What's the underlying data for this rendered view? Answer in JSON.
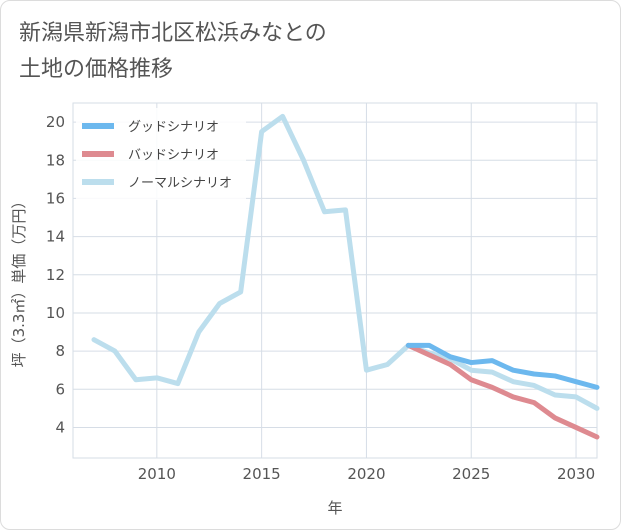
{
  "title": "新潟県新潟市北区松浜みなとの\n土地の価格推移",
  "chart_data": {
    "type": "line",
    "title": "新潟県新潟市北区松浜みなとの土地の価格推移",
    "xlabel": "年",
    "ylabel": "坪（3.3㎡）単価（万円）",
    "xlim": [
      2006,
      2031
    ],
    "ylim": [
      2.4,
      21
    ],
    "xticks": [
      2010,
      2015,
      2020,
      2025,
      2030
    ],
    "yticks": [
      4,
      6,
      8,
      10,
      12,
      14,
      16,
      18,
      20
    ],
    "legend_position": "top-left",
    "series": [
      {
        "name": "グッドシナリオ",
        "color": "#6cb8ee",
        "x": [
          2022,
          2023,
          2024,
          2025,
          2026,
          2027,
          2028,
          2029,
          2030,
          2031
        ],
        "values": [
          8.3,
          8.3,
          7.7,
          7.4,
          7.5,
          7.0,
          6.8,
          6.7,
          6.4,
          6.1
        ]
      },
      {
        "name": "バッドシナリオ",
        "color": "#de8a90",
        "x": [
          2022,
          2023,
          2024,
          2025,
          2026,
          2027,
          2028,
          2029,
          2030,
          2031
        ],
        "values": [
          8.3,
          7.8,
          7.3,
          6.5,
          6.1,
          5.6,
          5.3,
          4.5,
          4.0,
          3.5
        ]
      },
      {
        "name": "ノーマルシナリオ",
        "color": "#bcdeed",
        "x": [
          2007,
          2008,
          2009,
          2010,
          2011,
          2012,
          2013,
          2014,
          2015,
          2016,
          2017,
          2018,
          2019,
          2020,
          2021,
          2022,
          2023,
          2024,
          2025,
          2026,
          2027,
          2028,
          2029,
          2030,
          2031
        ],
        "values": [
          8.6,
          8.0,
          6.5,
          6.6,
          6.3,
          9.0,
          10.5,
          11.1,
          19.5,
          20.3,
          18.0,
          15.3,
          15.4,
          7.0,
          7.3,
          8.3,
          7.9,
          7.6,
          7.0,
          6.9,
          6.4,
          6.2,
          5.7,
          5.6,
          5.0
        ]
      }
    ]
  }
}
